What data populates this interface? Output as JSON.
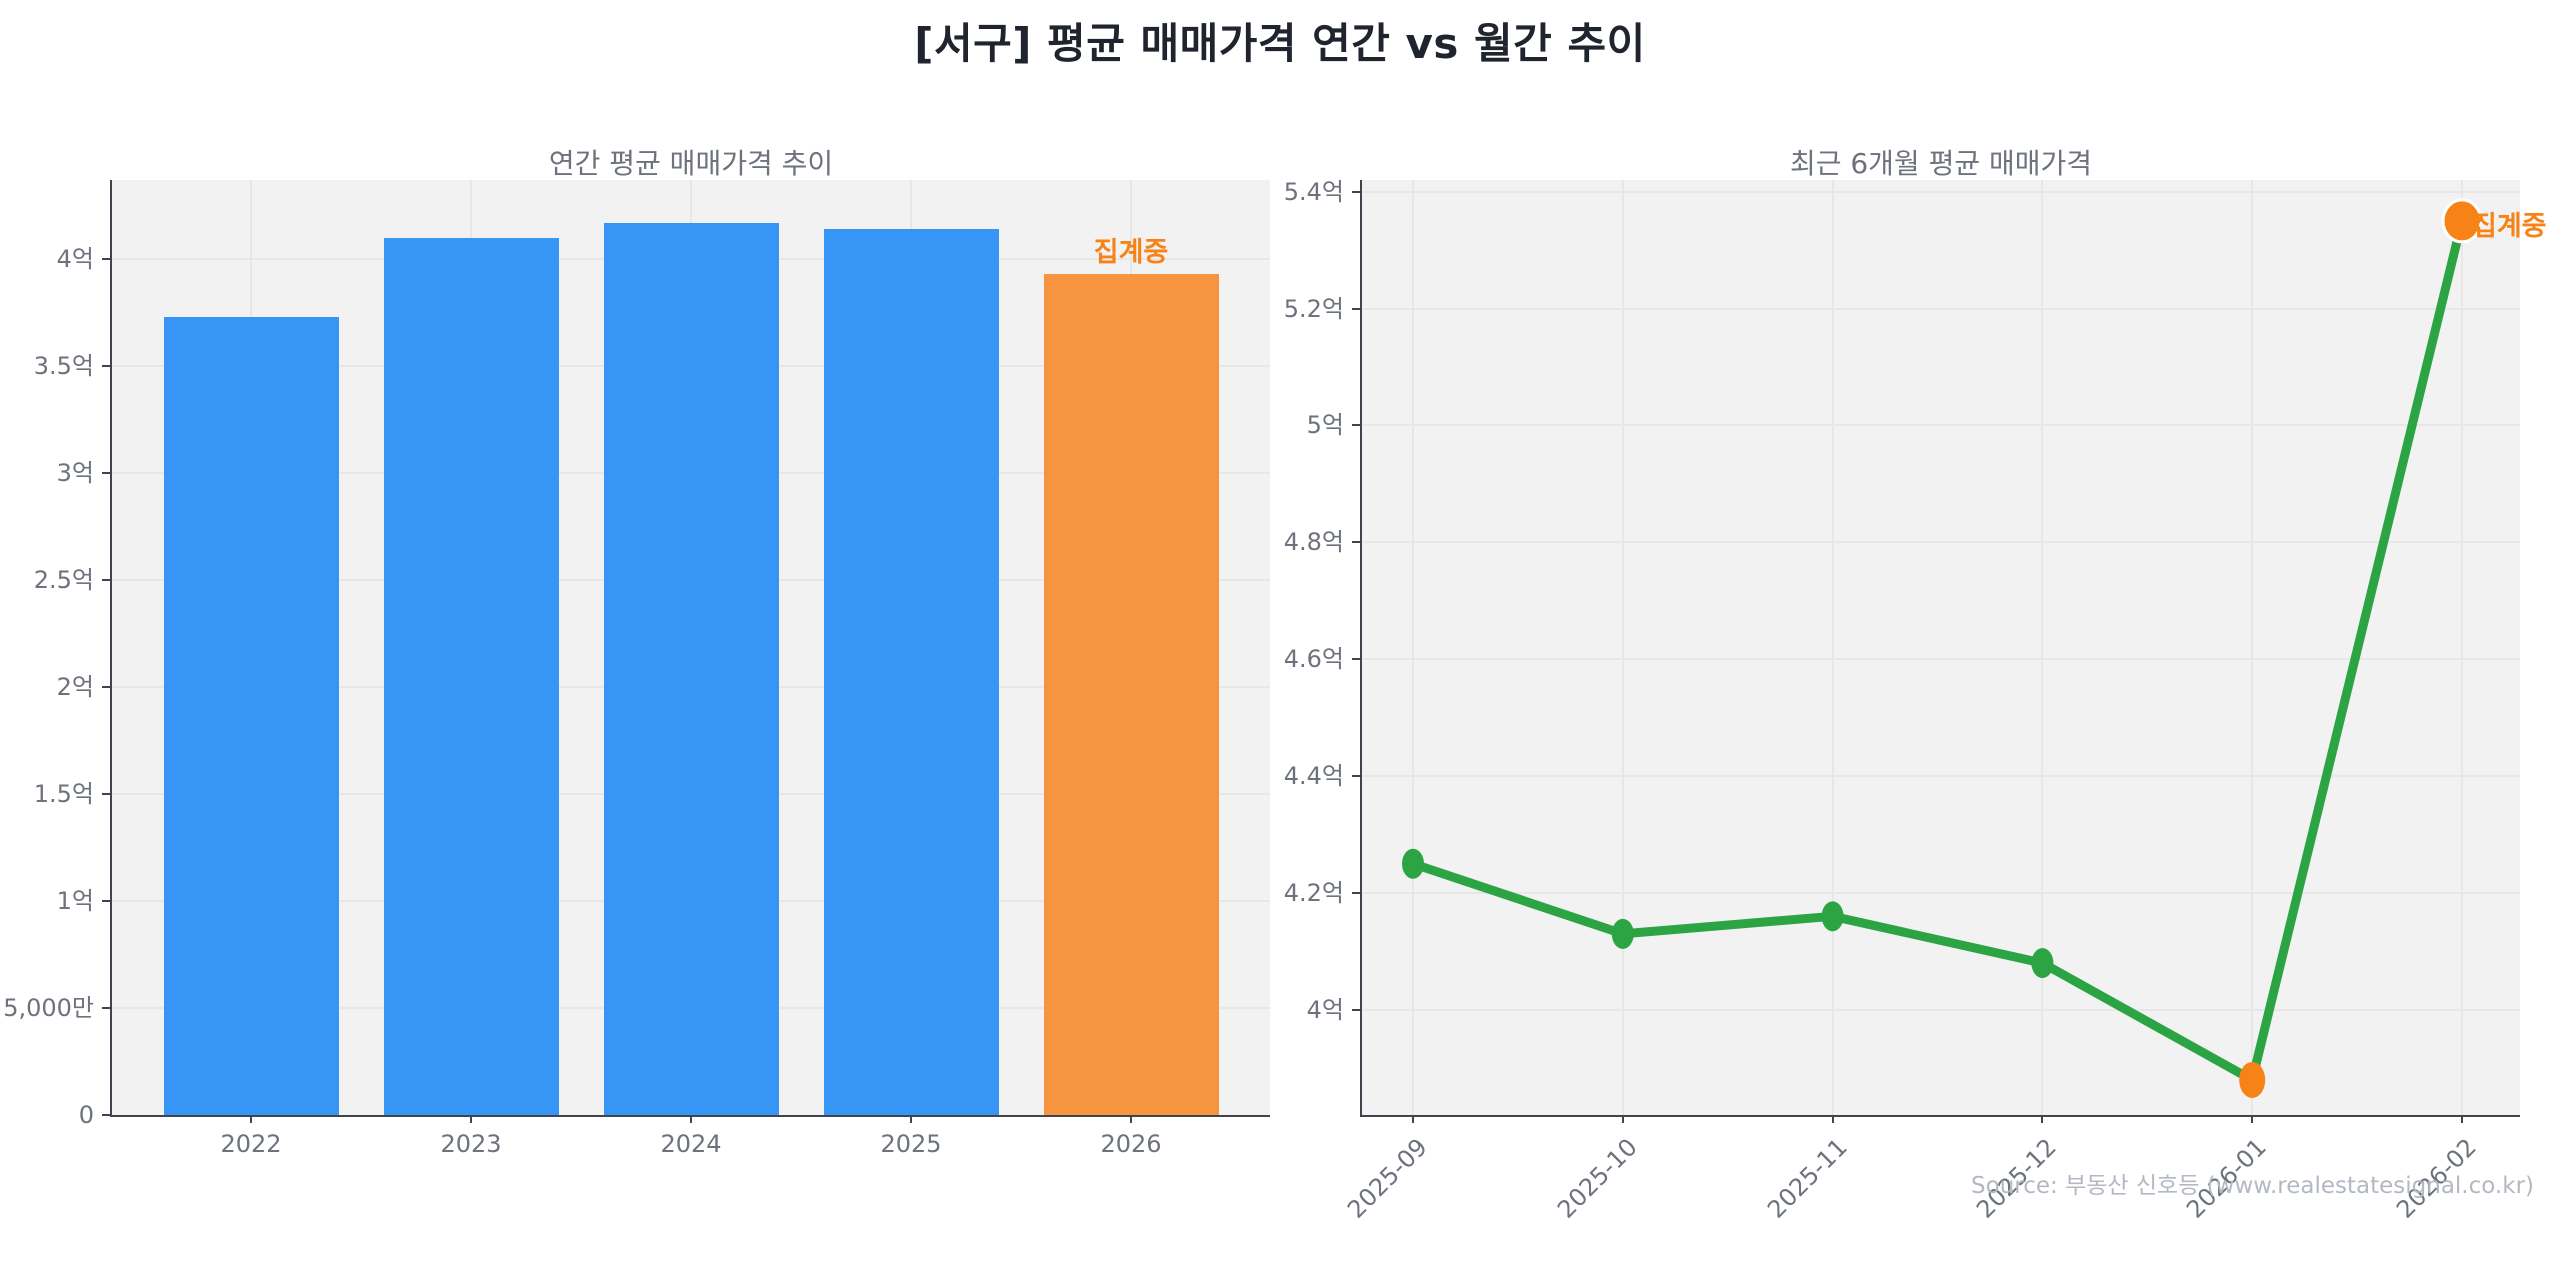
{
  "header": {
    "title": "[서구] 평균 매매가격 연간 vs 월간 추이"
  },
  "source": {
    "text": "Source: 부동산 신호등 (www.realestatesignal.co.kr)"
  },
  "colors": {
    "bar_blue": "#3795f5",
    "bar_orange": "#f79440",
    "line_green": "#2ca444",
    "marker_green": "#2ca444",
    "marker_orange": "#f78316",
    "annotation_orange": "#f78316",
    "plot_bg": "#f2f2f2",
    "grid": "#e7e7e7",
    "axis": "#40454d",
    "tick_text": "#6d727c",
    "title_text": "#20242e",
    "subtitle_text": "#6d727c",
    "source_text": "#b3b9c2"
  },
  "chart_data": [
    {
      "type": "bar",
      "title": "연간 평균 매매가격 추이",
      "categories": [
        "2022",
        "2023",
        "2024",
        "2025",
        "2026"
      ],
      "values": [
        3.73,
        4.1,
        4.17,
        4.14,
        3.93
      ],
      "unit": "억",
      "ylim": [
        0,
        4.37
      ],
      "ytick_values": [
        0,
        0.5,
        1,
        1.5,
        2,
        2.5,
        3,
        3.5,
        4
      ],
      "ytick_labels": [
        "0",
        "5,000만",
        "1억",
        "1.5억",
        "2억",
        "2.5억",
        "3억",
        "3.5억",
        "4억"
      ],
      "bar_colors": [
        "blue",
        "blue",
        "blue",
        "blue",
        "orange"
      ],
      "annotation": {
        "text": "집계중",
        "category": "2026"
      },
      "grid": true,
      "legend": false
    },
    {
      "type": "line",
      "title": "최근 6개월 평균 매매가격",
      "x": [
        "2025-09",
        "2025-10",
        "2025-11",
        "2025-12",
        "2026-01",
        "2026-02"
      ],
      "values": [
        4.25,
        4.13,
        4.16,
        4.08,
        3.88,
        5.35
      ],
      "unit": "억",
      "ylim": [
        3.82,
        5.42
      ],
      "ytick_values": [
        4,
        4.2,
        4.4,
        4.6,
        4.8,
        5,
        5.2,
        5.4
      ],
      "ytick_labels": [
        "4억",
        "4.2억",
        "4.4억",
        "4.6억",
        "4.8억",
        "5억",
        "5.2억",
        "5.4억"
      ],
      "marker_colors": [
        "green",
        "green",
        "green",
        "green",
        "orange",
        "orange"
      ],
      "annotation": {
        "text": "집계중",
        "x": "2026-02"
      },
      "grid": true,
      "legend": false,
      "x_label_rotation": -45
    }
  ]
}
